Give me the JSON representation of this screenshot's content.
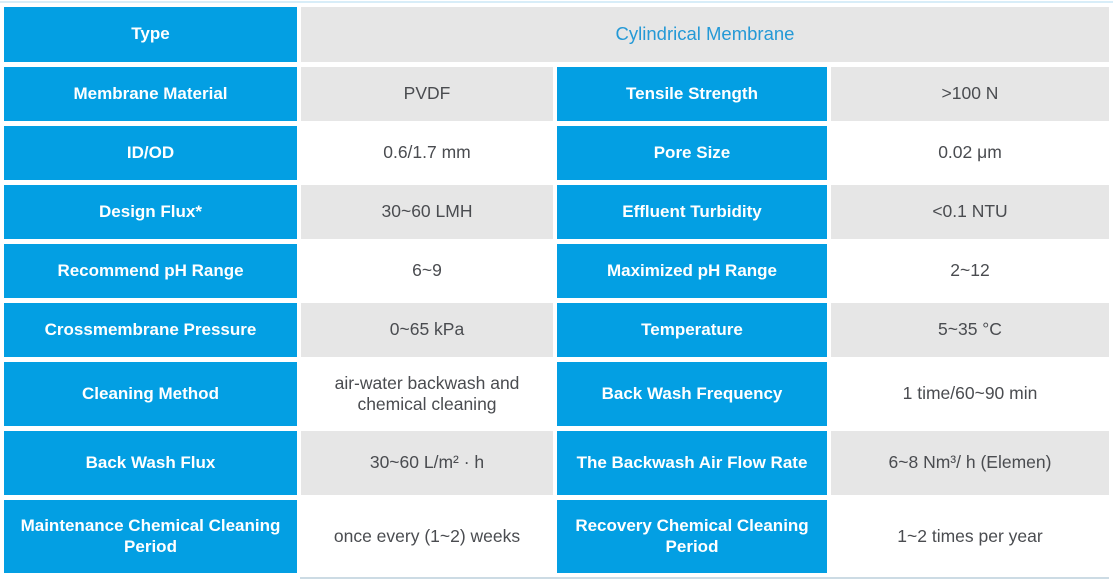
{
  "colors": {
    "cell_blue": "#039fe3",
    "cell_gray": "#e6e6e6",
    "cell_white": "#ffffff",
    "label_text": "#ffffff",
    "value_text": "#4a4c50",
    "type_value_text": "#2499d6",
    "top_line": "#d8edf8",
    "bottom_line": "#ccdbe4"
  },
  "table": {
    "type_row": {
      "label": "Type",
      "value": "Cylindrical Membrane"
    },
    "rows": [
      {
        "label1": "Membrane Material",
        "value1": "PVDF",
        "label2": "Tensile Strength",
        "value2": ">100 N",
        "shade": "gray"
      },
      {
        "label1": "ID/OD",
        "value1": "0.6/1.7 mm",
        "label2": "Pore Size",
        "value2": "0.02 μm",
        "shade": "white"
      },
      {
        "label1": "Design Flux*",
        "value1": "30~60 LMH",
        "label2": "Effluent Turbidity",
        "value2": "<0.1 NTU",
        "shade": "gray"
      },
      {
        "label1": "Recommend pH Range",
        "value1": "6~9",
        "label2": "Maximized pH Range",
        "value2": "2~12",
        "shade": "white"
      },
      {
        "label1": "Crossmembrane Pressure",
        "value1": "0~65 kPa",
        "label2": "Temperature",
        "value2": "5~35 °C",
        "shade": "gray"
      },
      {
        "label1": "Cleaning Method",
        "value1": "air-water backwash and chemical cleaning",
        "label2": "Back Wash Frequency",
        "value2": "1 time/60~90 min",
        "shade": "white"
      },
      {
        "label1": "Back Wash Flux",
        "value1": "30~60 L/m² · h",
        "label2": "The Backwash Air Flow Rate",
        "value2": "6~8 Nm³/ h (Elemen)",
        "shade": "gray"
      },
      {
        "label1": "Maintenance Chemical Cleaning Period",
        "value1": "once every (1~2) weeks",
        "label2": "Recovery Chemical Cleaning Period",
        "value2": "1~2 times per year",
        "shade": "white"
      }
    ]
  }
}
